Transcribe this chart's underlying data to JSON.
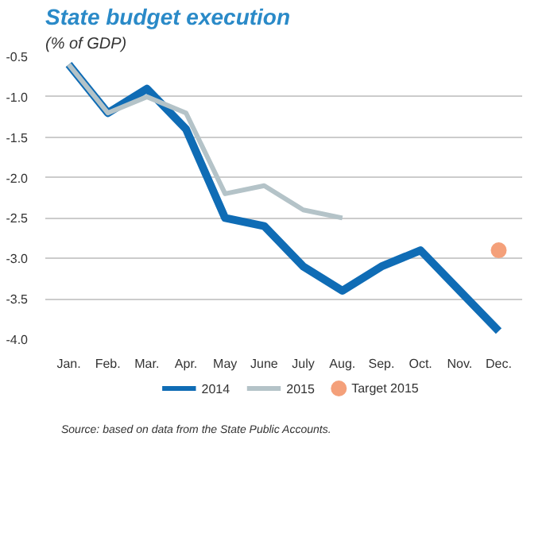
{
  "chart_data": {
    "type": "line",
    "title": "State budget execution",
    "subtitle": "(% of GDP)",
    "categories": [
      "Jan.",
      "Feb.",
      "Mar.",
      "Apr.",
      "May",
      "June",
      "July",
      "Aug.",
      "Sep.",
      "Oct.",
      "Nov.",
      "Dec."
    ],
    "series": [
      {
        "name": "2014",
        "color": "#0f6cb5",
        "values": [
          -0.6,
          -1.2,
          -0.9,
          -1.4,
          -2.5,
          -2.6,
          -3.1,
          -3.4,
          -3.1,
          -2.9,
          -3.4,
          -3.9
        ]
      },
      {
        "name": "2015",
        "color": "#b4c3c8",
        "values": [
          -0.6,
          -1.2,
          -1.0,
          -1.2,
          -2.2,
          -2.1,
          -2.4,
          -2.5,
          null,
          null,
          null,
          null
        ]
      },
      {
        "name": "Target 2015",
        "type": "scatter",
        "marker": "circle",
        "color": "#f4a07a",
        "x": [
          "Dec."
        ],
        "values": [
          -2.9
        ]
      }
    ],
    "ylim": [
      -4.0,
      -0.5
    ],
    "yticks": [
      {
        "value": -4.0,
        "label": "-4.0"
      },
      {
        "value": -3.5,
        "label": "-3.5"
      },
      {
        "value": -3.0,
        "label": "-3.0"
      },
      {
        "value": -2.5,
        "label": "-2.5"
      },
      {
        "value": -2.0,
        "label": "-2.0"
      },
      {
        "value": -1.5,
        "label": "-1.5"
      },
      {
        "value": -1.0,
        "label": "-1.0"
      },
      {
        "value": -0.5,
        "label": "-0.5"
      }
    ],
    "grid": "y",
    "legend": "bottom",
    "line_style": "solid",
    "annotations": [
      "Source: based on data from the State Public Accounts."
    ]
  }
}
